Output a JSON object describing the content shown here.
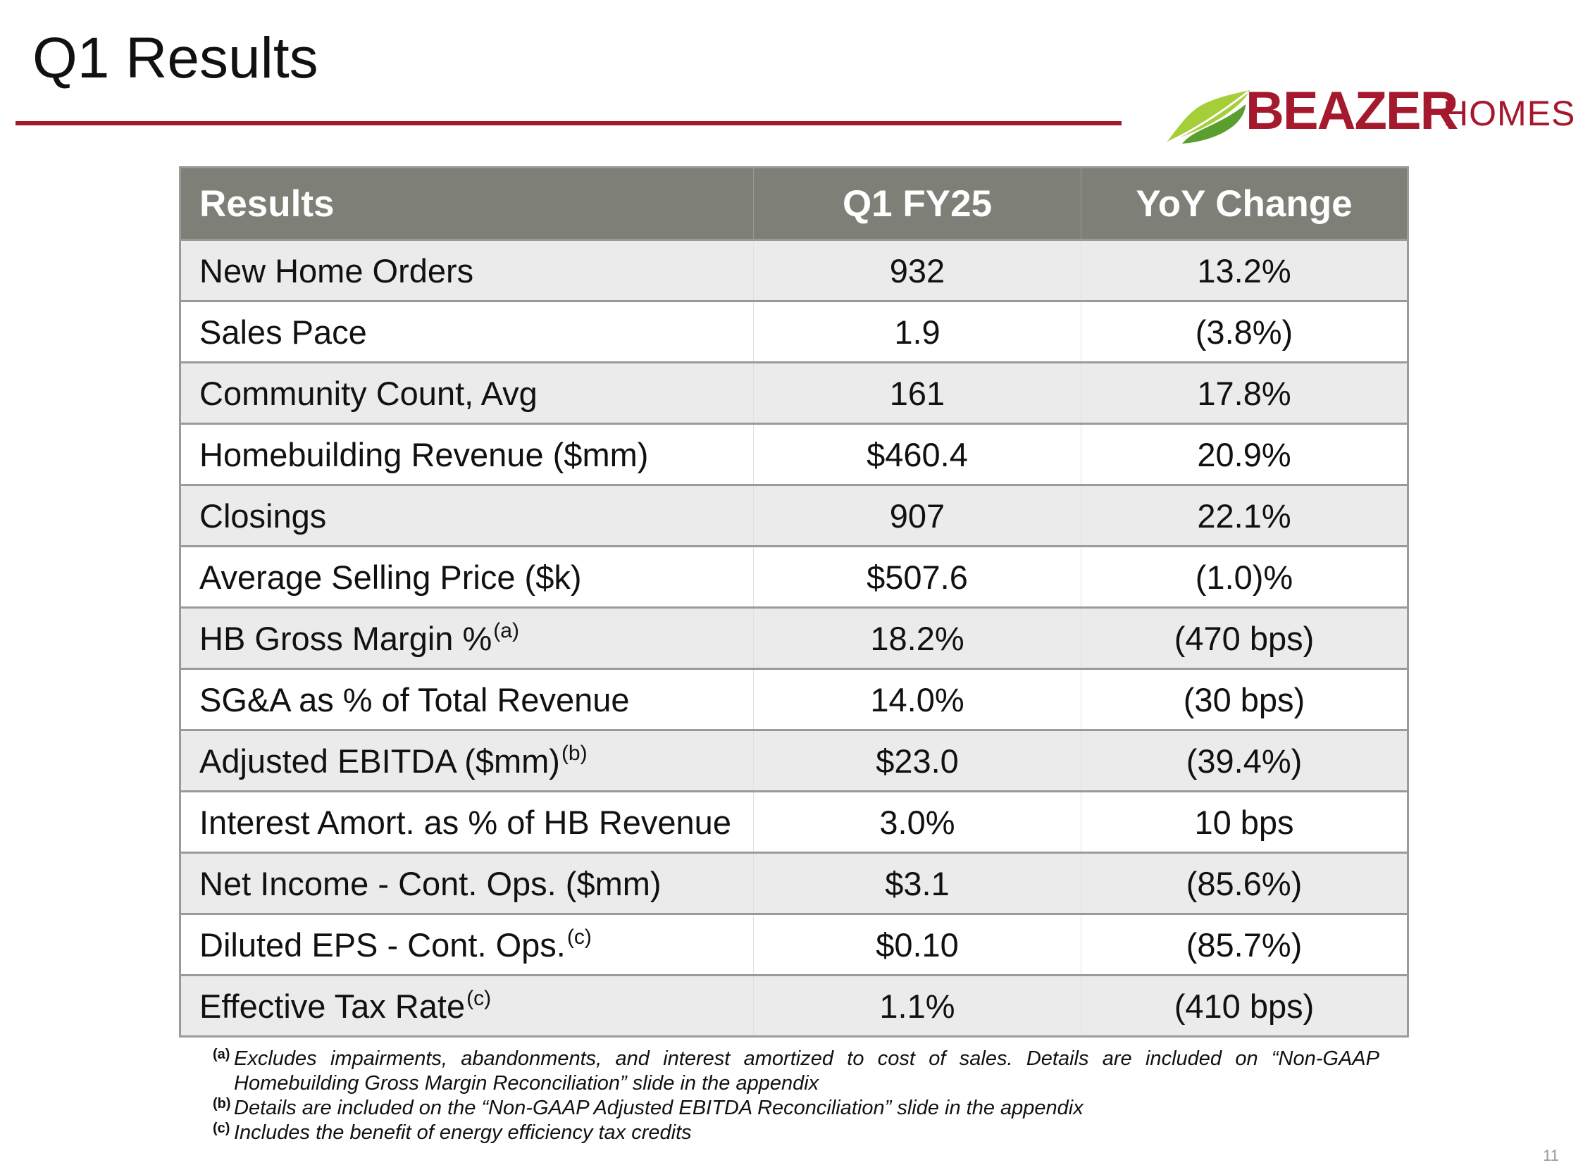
{
  "slide": {
    "title": "Q1 Results",
    "page_number": "11"
  },
  "logo": {
    "name": "BEAZER",
    "sub": "HOMES",
    "colors": {
      "brand_red": "#a5192e",
      "leaf_light": "#a6ce39",
      "leaf_dark": "#5a9f2e"
    }
  },
  "table": {
    "headers": {
      "label": "Results",
      "q1": "Q1 FY25",
      "yoy": "YoY Change"
    },
    "rows": [
      {
        "label": "New Home Orders",
        "sup": "",
        "q1": "932",
        "yoy": "13.2%"
      },
      {
        "label": "Sales Pace",
        "sup": "",
        "q1": "1.9",
        "yoy": "(3.8%)"
      },
      {
        "label": "Community Count, Avg",
        "sup": "",
        "q1": "161",
        "yoy": "17.8%"
      },
      {
        "label": "Homebuilding Revenue ($mm)",
        "sup": "",
        "q1": "$460.4",
        "yoy": "20.9%"
      },
      {
        "label": "Closings",
        "sup": "",
        "q1": "907",
        "yoy": "22.1%"
      },
      {
        "label": "Average Selling Price ($k)",
        "sup": "",
        "q1": "$507.6",
        "yoy": "(1.0)%"
      },
      {
        "label": "HB Gross Margin %",
        "sup": "(a)",
        "q1": "18.2%",
        "yoy": "(470 bps)"
      },
      {
        "label": "SG&A as % of Total Revenue",
        "sup": "",
        "q1": "14.0%",
        "yoy": "(30 bps)"
      },
      {
        "label": "Adjusted EBITDA ($mm)",
        "sup": "(b)",
        "q1": "$23.0",
        "yoy": "(39.4%)"
      },
      {
        "label": "Interest Amort. as % of HB Revenue",
        "sup": "",
        "q1": "3.0%",
        "yoy": "10 bps"
      },
      {
        "label": "Net Income - Cont. Ops. ($mm)",
        "sup": "",
        "q1": "$3.1",
        "yoy": "(85.6%)"
      },
      {
        "label": "Diluted EPS - Cont. Ops.",
        "sup": "(c)",
        "q1": "$0.10",
        "yoy": "(85.7%)"
      },
      {
        "label": "Effective Tax Rate",
        "sup": "(c)",
        "q1": "1.1%",
        "yoy": "(410 bps)"
      }
    ]
  },
  "footnotes": [
    {
      "marker": "(a)",
      "text": "Excludes impairments, abandonments, and interest amortized to cost of sales. Details are included on “Non-GAAP Homebuilding Gross Margin Reconciliation” slide in the appendix"
    },
    {
      "marker": "(b)",
      "text": "Details are included on the “Non-GAAP Adjusted EBITDA Reconciliation” slide in the appendix"
    },
    {
      "marker": "(c)",
      "text": "Includes the benefit of energy efficiency tax credits"
    }
  ]
}
